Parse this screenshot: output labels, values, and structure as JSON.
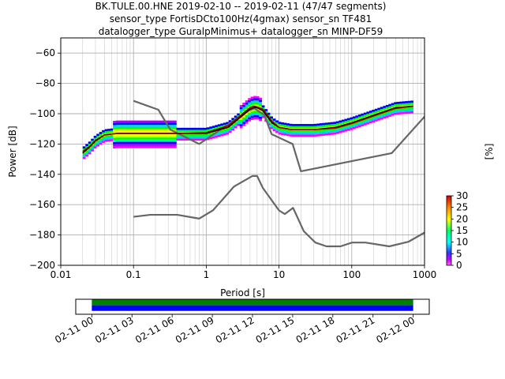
{
  "title_lines": [
    "BK.TULE.00.HNE   2019-02-10 -- 2019-02-11  (47/47 segments)",
    "sensor_type FortisDCto100Hz(4gmax) sensor_sn TF481",
    "datalogger_type GuralpMinimus+ datalogger_sn MINP-DF59"
  ],
  "chart_data": [
    {
      "type": "heatmap",
      "xlabel": "Period [s]",
      "ylabel": "Power [dB]",
      "xscale": "log",
      "xlim": [
        0.01,
        1000
      ],
      "ylim": [
        -200,
        -50
      ],
      "x_ticks": [
        0.01,
        0.1,
        1,
        10,
        100,
        1000
      ],
      "x_tick_labels": [
        "0.01",
        "0.1",
        "1",
        "10",
        "100",
        "1000"
      ],
      "y_ticks": [
        -200,
        -180,
        -160,
        -140,
        -120,
        -100,
        -80,
        -60
      ],
      "y_tick_labels": [
        "−200",
        "−180",
        "−160",
        "−140",
        "−120",
        "−100",
        "−80",
        "−60"
      ],
      "grid": true,
      "colorbar": {
        "label": "[%]",
        "range": [
          0,
          30
        ],
        "ticks": [
          0,
          5,
          10,
          15,
          20,
          25,
          30
        ],
        "tick_labels": [
          "0",
          "5",
          "10",
          "15",
          "20",
          "25",
          "30"
        ]
      },
      "series": [
        {
          "role": "noise-model-high",
          "color": "#666666",
          "x": [
            0.1,
            0.22,
            0.32,
            0.8,
            3.8,
            4.6,
            6.3,
            7.9,
            15.4,
            20,
            354.8,
            10000
          ],
          "y": [
            -91.5,
            -97.4,
            -110.5,
            -120,
            -98,
            -96.5,
            -101,
            -113.5,
            -120,
            -138,
            -126,
            -48.5
          ]
        },
        {
          "role": "noise-model-low",
          "color": "#666666",
          "x": [
            0.1,
            0.17,
            0.4,
            0.8,
            1.24,
            2.4,
            4.3,
            5.0,
            6.0,
            10.0,
            12.0,
            15.6,
            21.9,
            31.6,
            45,
            70,
            101,
            154,
            328,
            600,
            10000
          ],
          "y": [
            -168,
            -166.7,
            -166.7,
            -169.2,
            -163.7,
            -148.1,
            -141.1,
            -141.1,
            -149,
            -163.8,
            -166.2,
            -162.1,
            -177.5,
            -185,
            -187.5,
            -187.5,
            -185,
            -185,
            -187.5,
            -184.5,
            -151
          ]
        },
        {
          "role": "mean",
          "color": "#000000",
          "x": [
            0.02,
            0.025,
            0.03,
            0.04,
            0.06,
            0.1,
            0.2,
            0.4,
            1,
            2,
            3,
            4,
            4.5,
            5,
            6,
            8,
            10,
            15,
            30,
            60,
            100,
            200,
            400,
            700
          ],
          "y": [
            -126,
            -122,
            -118,
            -114,
            -113,
            -113,
            -113,
            -113,
            -113,
            -109,
            -102,
            -97,
            -96,
            -96,
            -98,
            -106,
            -109,
            -110.5,
            -110.5,
            -109,
            -106,
            -101,
            -96,
            -95
          ]
        },
        {
          "role": "mode",
          "color": "#8b0000",
          "x": [
            0.02,
            0.025,
            0.03,
            0.04,
            0.06,
            0.1,
            0.2,
            0.4,
            1,
            2,
            3,
            4,
            4.5,
            5,
            6,
            8,
            10,
            15,
            30,
            60,
            100,
            200,
            400,
            700
          ],
          "y": [
            -125,
            -121.5,
            -117.5,
            -114,
            -113,
            -113,
            -113,
            -113,
            -112.5,
            -108,
            -101,
            -96,
            -95,
            -95.5,
            -97,
            -105,
            -109,
            -110.5,
            -110.5,
            -109.5,
            -106.5,
            -101.5,
            -96.5,
            -95
          ]
        }
      ]
    },
    {
      "type": "bar",
      "subtype": "coverage",
      "x_tick_labels": [
        "02-11 00",
        "02-11 03",
        "02-11 06",
        "02-11 09",
        "02-11 12",
        "02-11 15",
        "02-11 18",
        "02-11 21",
        "02-12 00"
      ],
      "x_ticks_hours": [
        0,
        3,
        6,
        9,
        12,
        15,
        18,
        21,
        24
      ],
      "xlim_hours": [
        -1.2,
        25.2
      ],
      "bars": [
        {
          "name": "",
          "start_hour": 0,
          "end_hour": 24,
          "color": "#008000"
        },
        {
          "name": "",
          "start_hour": 0,
          "end_hour": 24,
          "color": "#0000ff"
        }
      ]
    }
  ]
}
